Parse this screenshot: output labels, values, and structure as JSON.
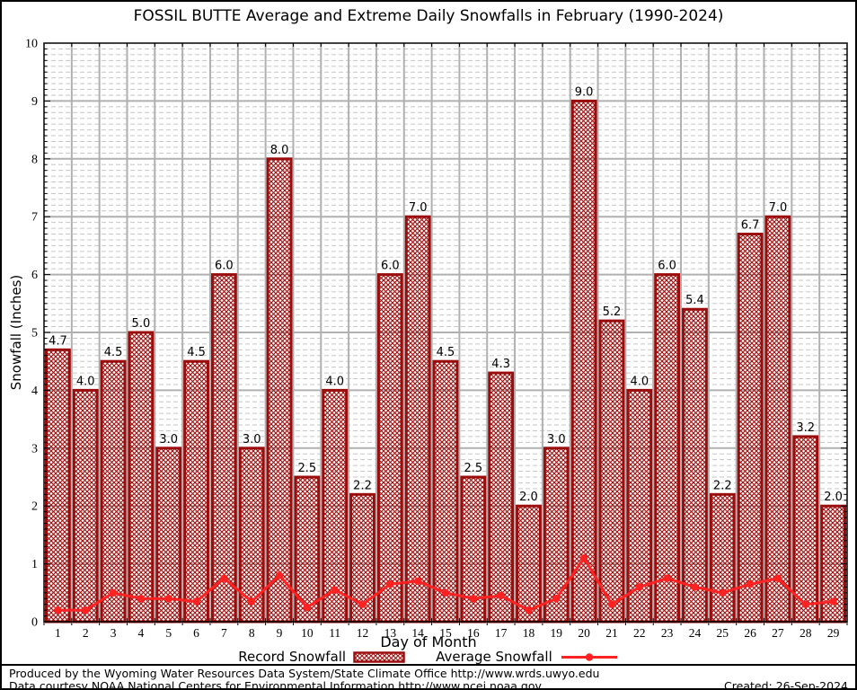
{
  "title": "FOSSIL BUTTE Average and Extreme Daily Snowfalls in February (1990-2024)",
  "chart_data": {
    "type": "bar",
    "title": "FOSSIL BUTTE Average and Extreme Daily Snowfalls in February (1990-2024)",
    "xlabel": "Day of Month",
    "ylabel": "Snowfall (Inches)",
    "ylim": [
      0,
      10
    ],
    "yticks": [
      0,
      1,
      2,
      3,
      4,
      5,
      6,
      7,
      8,
      9,
      10
    ],
    "minor_grid_step": 0.1,
    "grid": "on",
    "legend_position": "bottom",
    "categories": [
      1,
      2,
      3,
      4,
      5,
      6,
      7,
      8,
      9,
      10,
      11,
      12,
      13,
      14,
      15,
      16,
      17,
      18,
      19,
      20,
      21,
      22,
      23,
      24,
      25,
      26,
      27,
      28,
      29
    ],
    "series": [
      {
        "name": "Record Snowfall",
        "type": "bar",
        "values": [
          4.7,
          4.0,
          4.5,
          5.0,
          3.0,
          4.5,
          6.0,
          3.0,
          8.0,
          2.5,
          4.0,
          2.2,
          6.0,
          7.0,
          4.5,
          2.5,
          4.3,
          2.0,
          3.0,
          9.0,
          5.2,
          4.0,
          6.0,
          5.4,
          2.2,
          6.7,
          7.0,
          3.2,
          2.0
        ]
      },
      {
        "name": "Average Snowfall",
        "type": "line",
        "values": [
          0.2,
          0.2,
          0.5,
          0.4,
          0.4,
          0.35,
          0.75,
          0.35,
          0.8,
          0.25,
          0.55,
          0.3,
          0.65,
          0.7,
          0.5,
          0.4,
          0.45,
          0.2,
          0.4,
          1.1,
          0.3,
          0.6,
          0.75,
          0.6,
          0.5,
          0.65,
          0.75,
          0.3,
          0.35
        ]
      }
    ],
    "colors": {
      "bar_edge": "#9b0d0d",
      "bar_hatch": "#9b0d0d",
      "line": "#ff2222",
      "grid_major": "#b0b0b0",
      "grid_minor": "#c6c6c6",
      "axis": "#000000"
    }
  },
  "legend": {
    "record_label": "Record Snowfall",
    "average_label": "Average Snowfall"
  },
  "footer": {
    "line1": "Produced by the Wyoming Water Resources Data System/State Climate Office http://www.wrds.uwyo.edu",
    "line2": "Data courtesy NOAA National Centers for Environmental Information http://www.ncei.noaa.gov",
    "created": "Created: 26-Sep-2024"
  }
}
